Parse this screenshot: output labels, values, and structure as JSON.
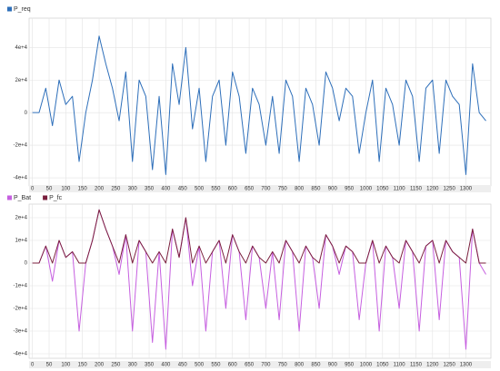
{
  "chart_data": [
    {
      "type": "line",
      "x": [
        0,
        20,
        40,
        60,
        80,
        100,
        120,
        140,
        160,
        180,
        200,
        220,
        240,
        260,
        280,
        300,
        320,
        340,
        360,
        380,
        400,
        420,
        440,
        460,
        480,
        500,
        520,
        540,
        560,
        580,
        600,
        620,
        640,
        660,
        680,
        700,
        720,
        740,
        760,
        780,
        800,
        820,
        840,
        860,
        880,
        900,
        920,
        940,
        960,
        980,
        1000,
        1020,
        1040,
        1060,
        1080,
        1100,
        1120,
        1140,
        1160,
        1180,
        1200,
        1220,
        1240,
        1260,
        1280,
        1300,
        1320,
        1340,
        1360
      ],
      "series": [
        {
          "name": "P_req",
          "color": "#2e6fba",
          "values": [
            0,
            0,
            15000,
            -8000,
            20000,
            5000,
            10000,
            -30000,
            0,
            20000,
            47000,
            30000,
            15000,
            -5000,
            25000,
            -30000,
            20000,
            10000,
            -35000,
            10000,
            -38000,
            30000,
            5000,
            40000,
            -10000,
            15000,
            -30000,
            10000,
            20000,
            -20000,
            25000,
            10000,
            -25000,
            15000,
            5000,
            -20000,
            10000,
            -25000,
            20000,
            10000,
            -30000,
            15000,
            5000,
            -20000,
            25000,
            15000,
            -5000,
            15000,
            10000,
            -25000,
            0,
            20000,
            -30000,
            15000,
            5000,
            -20000,
            20000,
            10000,
            -30000,
            15000,
            20000,
            -25000,
            20000,
            10000,
            5000,
            -38000,
            30000,
            0,
            -5000
          ]
        }
      ],
      "xlim": [
        -10,
        1375
      ],
      "xticks": [
        0,
        50,
        100,
        150,
        200,
        250,
        300,
        350,
        400,
        450,
        500,
        550,
        600,
        650,
        700,
        750,
        800,
        850,
        900,
        950,
        1000,
        1050,
        1100,
        1150,
        1200,
        1250,
        1300
      ],
      "ylim": [
        -45000,
        58000
      ],
      "yticks": [
        {
          "value": 40000,
          "label": "4e+4"
        },
        {
          "value": 20000,
          "label": "2e+4"
        },
        0,
        {
          "value": -20000,
          "label": "-2e+4"
        },
        {
          "value": -40000,
          "label": "-4e+4"
        }
      ],
      "grid": true
    },
    {
      "type": "line",
      "x": [
        0,
        20,
        40,
        60,
        80,
        100,
        120,
        140,
        160,
        180,
        200,
        220,
        240,
        260,
        280,
        300,
        320,
        340,
        360,
        380,
        400,
        420,
        440,
        460,
        480,
        500,
        520,
        540,
        560,
        580,
        600,
        620,
        640,
        660,
        680,
        700,
        720,
        740,
        760,
        780,
        800,
        820,
        840,
        860,
        880,
        900,
        920,
        940,
        960,
        980,
        1000,
        1020,
        1040,
        1060,
        1080,
        1100,
        1120,
        1140,
        1160,
        1180,
        1200,
        1220,
        1240,
        1260,
        1280,
        1300,
        1320,
        1340,
        1360
      ],
      "series": [
        {
          "name": "P_Bat",
          "color": "#c65fe0",
          "values": [
            0,
            0,
            7500,
            -8000,
            10000,
            2500,
            5000,
            -30000,
            0,
            10000,
            23500,
            15000,
            7500,
            -5000,
            12500,
            -30000,
            10000,
            5000,
            -35000,
            5000,
            -38000,
            15000,
            2500,
            20000,
            -10000,
            7500,
            -30000,
            5000,
            10000,
            -20000,
            12500,
            5000,
            -25000,
            7500,
            2500,
            -20000,
            5000,
            -25000,
            10000,
            5000,
            -30000,
            7500,
            2500,
            -20000,
            12500,
            7500,
            -5000,
            7500,
            5000,
            -25000,
            0,
            10000,
            -30000,
            7500,
            2500,
            -20000,
            10000,
            5000,
            -30000,
            7500,
            10000,
            -25000,
            10000,
            5000,
            2500,
            -38000,
            15000,
            0,
            -5000
          ]
        },
        {
          "name": "P_fc",
          "color": "#7a1f3d",
          "values": [
            0,
            0,
            7500,
            0,
            10000,
            2500,
            5000,
            0,
            0,
            10000,
            23500,
            15000,
            7500,
            0,
            12500,
            0,
            10000,
            5000,
            0,
            5000,
            0,
            15000,
            2500,
            20000,
            0,
            7500,
            0,
            5000,
            10000,
            0,
            12500,
            5000,
            0,
            7500,
            2500,
            0,
            5000,
            0,
            10000,
            5000,
            0,
            7500,
            2500,
            0,
            12500,
            7500,
            0,
            7500,
            5000,
            0,
            0,
            10000,
            0,
            7500,
            2500,
            0,
            10000,
            5000,
            0,
            7500,
            10000,
            0,
            10000,
            5000,
            2500,
            0,
            15000,
            0,
            0
          ]
        }
      ],
      "xlim": [
        -10,
        1375
      ],
      "xticks": [
        0,
        50,
        100,
        150,
        200,
        250,
        300,
        350,
        400,
        450,
        500,
        550,
        600,
        650,
        700,
        750,
        800,
        850,
        900,
        950,
        1000,
        1050,
        1100,
        1150,
        1200,
        1250,
        1300
      ],
      "ylim": [
        -42000,
        26000
      ],
      "yticks": [
        {
          "value": 20000,
          "label": "2e+4"
        },
        {
          "value": 10000,
          "label": "1e+4"
        },
        0,
        {
          "value": -10000,
          "label": "-1e+4"
        },
        {
          "value": -20000,
          "label": "-2e+4"
        },
        {
          "value": -30000,
          "label": "-3e+4"
        },
        {
          "value": -40000,
          "label": "-4e+4"
        }
      ],
      "grid": true
    }
  ]
}
